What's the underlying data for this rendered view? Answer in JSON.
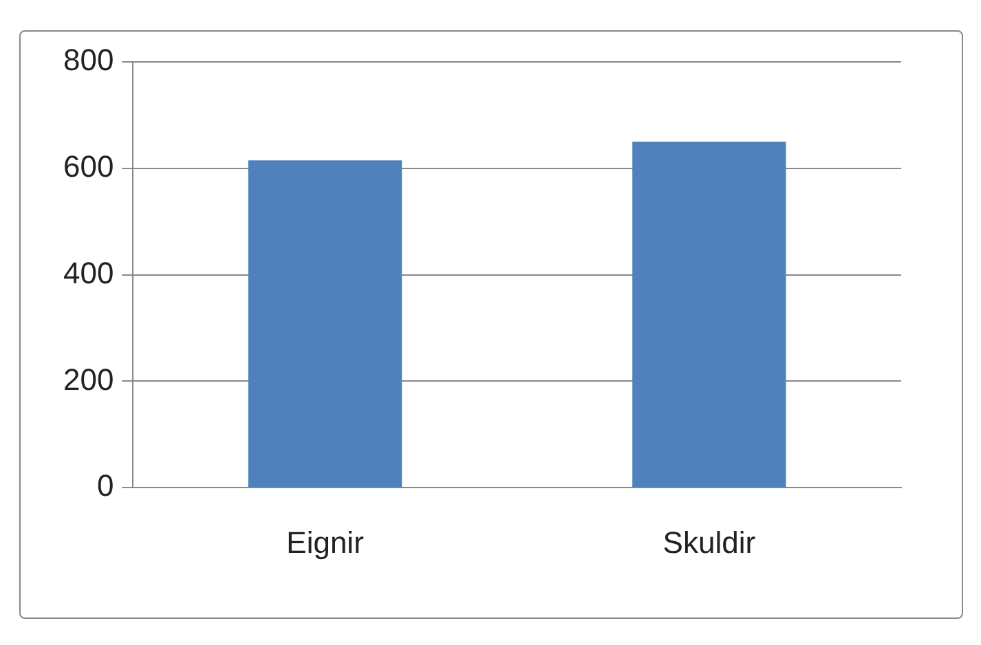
{
  "chart_data": {
    "type": "bar",
    "categories": [
      "Eignir",
      "Skuldir"
    ],
    "values": [
      615,
      650
    ],
    "color": "#4f81bd",
    "ylim": [
      0,
      800
    ],
    "yticks": [
      0,
      200,
      400,
      600,
      800
    ],
    "grid": "y"
  }
}
